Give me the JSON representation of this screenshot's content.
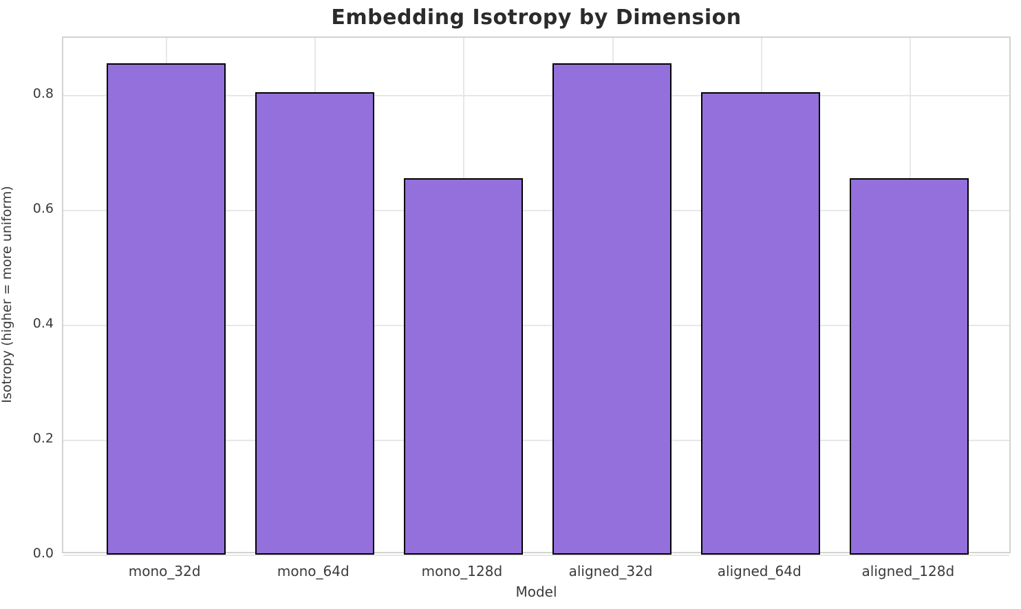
{
  "chart_data": {
    "type": "bar",
    "title": "Embedding Isotropy by Dimension",
    "xlabel": "Model",
    "ylabel": "Isotropy (higher = more uniform)",
    "categories": [
      "mono_32d",
      "mono_64d",
      "mono_128d",
      "aligned_32d",
      "aligned_64d",
      "aligned_128d"
    ],
    "values": [
      0.856,
      0.805,
      0.655,
      0.856,
      0.805,
      0.655
    ],
    "ylim": [
      0,
      0.9
    ],
    "yticks": [
      0.0,
      0.2,
      0.4,
      0.6,
      0.8
    ],
    "ytick_labels": [
      "0.0",
      "0.2",
      "0.4",
      "0.6",
      "0.8"
    ],
    "bar_width_fraction": 0.8,
    "x_margin_units": 0.69,
    "grid": true,
    "legend_position": "none",
    "colors": {
      "bar_fill": "#9370DB",
      "bar_edge": "#000000",
      "grid_line": "#e7e7e7",
      "spine": "#d2d2d2",
      "title_text": "#2b2b2b",
      "tick_text": "#3a3a3a"
    }
  }
}
